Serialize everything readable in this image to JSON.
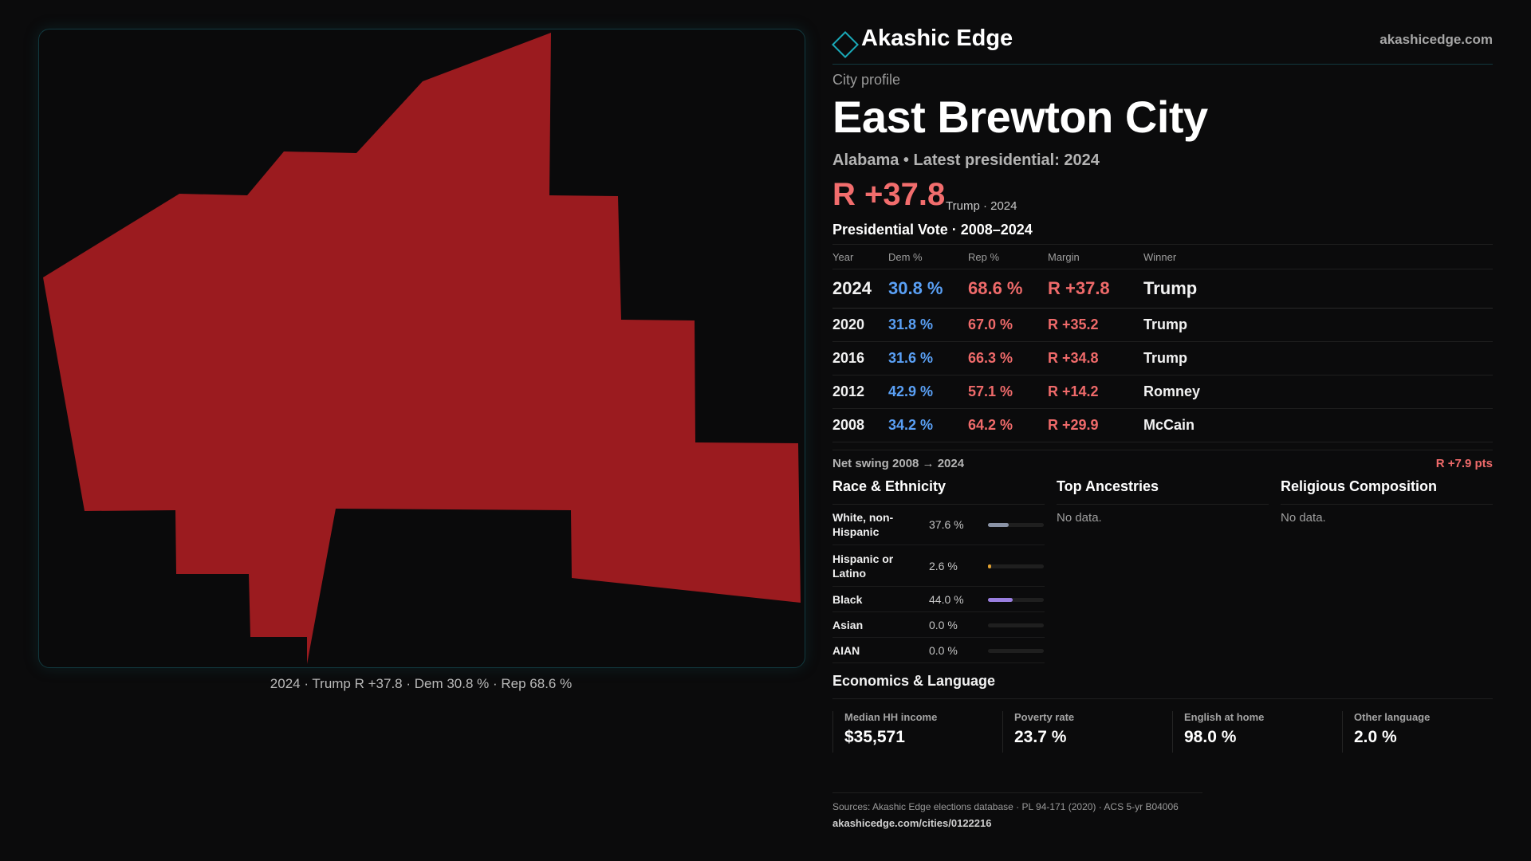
{
  "brand": {
    "name": "Akashic Edge",
    "site": "akashicedge.com"
  },
  "profile": {
    "eyebrow": "City profile",
    "title": "East Brewton City",
    "subtitle": "Alabama • Latest presidential: 2024",
    "headline_margin": "R +37.8",
    "headline_note": "Trump · 2024"
  },
  "map": {
    "caption": "2024 · Trump R +37.8 · Dem 30.8 % · Rep 68.6 %",
    "fill_color": "#9b1b1f"
  },
  "vote": {
    "section_title": "Presidential Vote · 2008–2024",
    "headers": {
      "year": "Year",
      "dem": "Dem %",
      "rep": "Rep %",
      "margin": "Margin",
      "winner": "Winner"
    },
    "rows": [
      {
        "year": "2024",
        "dem": "30.8 %",
        "rep": "68.6 %",
        "margin": "R +37.8",
        "winner": "Trump"
      },
      {
        "year": "2020",
        "dem": "31.8 %",
        "rep": "67.0 %",
        "margin": "R +35.2",
        "winner": "Trump"
      },
      {
        "year": "2016",
        "dem": "31.6 %",
        "rep": "66.3 %",
        "margin": "R +34.8",
        "winner": "Trump"
      },
      {
        "year": "2012",
        "dem": "42.9 %",
        "rep": "57.1 %",
        "margin": "R +14.2",
        "winner": "Romney"
      },
      {
        "year": "2008",
        "dem": "34.2 %",
        "rep": "64.2 %",
        "margin": "R +29.9",
        "winner": "McCain"
      }
    ],
    "swing_label": "Net swing 2008 → 2024",
    "swing_value": "R +7.9 pts"
  },
  "race": {
    "title": "Race & Ethnicity",
    "rows": [
      {
        "label": "White, non-Hispanic",
        "value": "37.6 %",
        "share": 0.376,
        "color": "#8a93a6"
      },
      {
        "label": "Hispanic or Latino",
        "value": "2.6 %",
        "share": 0.026,
        "color": "#e0a030"
      },
      {
        "label": "Black",
        "value": "44.0 %",
        "share": 0.44,
        "color": "#9a7fe0"
      },
      {
        "label": "Asian",
        "value": "0.0 %",
        "share": 0.0,
        "color": "#4fb0c0"
      },
      {
        "label": "AIAN",
        "value": "0.0 %",
        "share": 0.0,
        "color": "#7ab070"
      }
    ]
  },
  "ancestries": {
    "title": "Top Ancestries",
    "empty": "No data."
  },
  "religion": {
    "title": "Religious Composition",
    "empty": "No data."
  },
  "economics": {
    "title": "Economics & Language",
    "stats": [
      {
        "label": "Median HH income",
        "value": "$35,571"
      },
      {
        "label": "Poverty rate",
        "value": "23.7 %"
      },
      {
        "label": "English at home",
        "value": "98.0 %"
      },
      {
        "label": "Other language",
        "value": "2.0 %"
      }
    ]
  },
  "footer": {
    "sources": "Sources: Akashic Edge elections database · PL 94-171 (2020) · ACS 5-yr B04006",
    "url": "akashicedge.com/cities/0122216"
  }
}
